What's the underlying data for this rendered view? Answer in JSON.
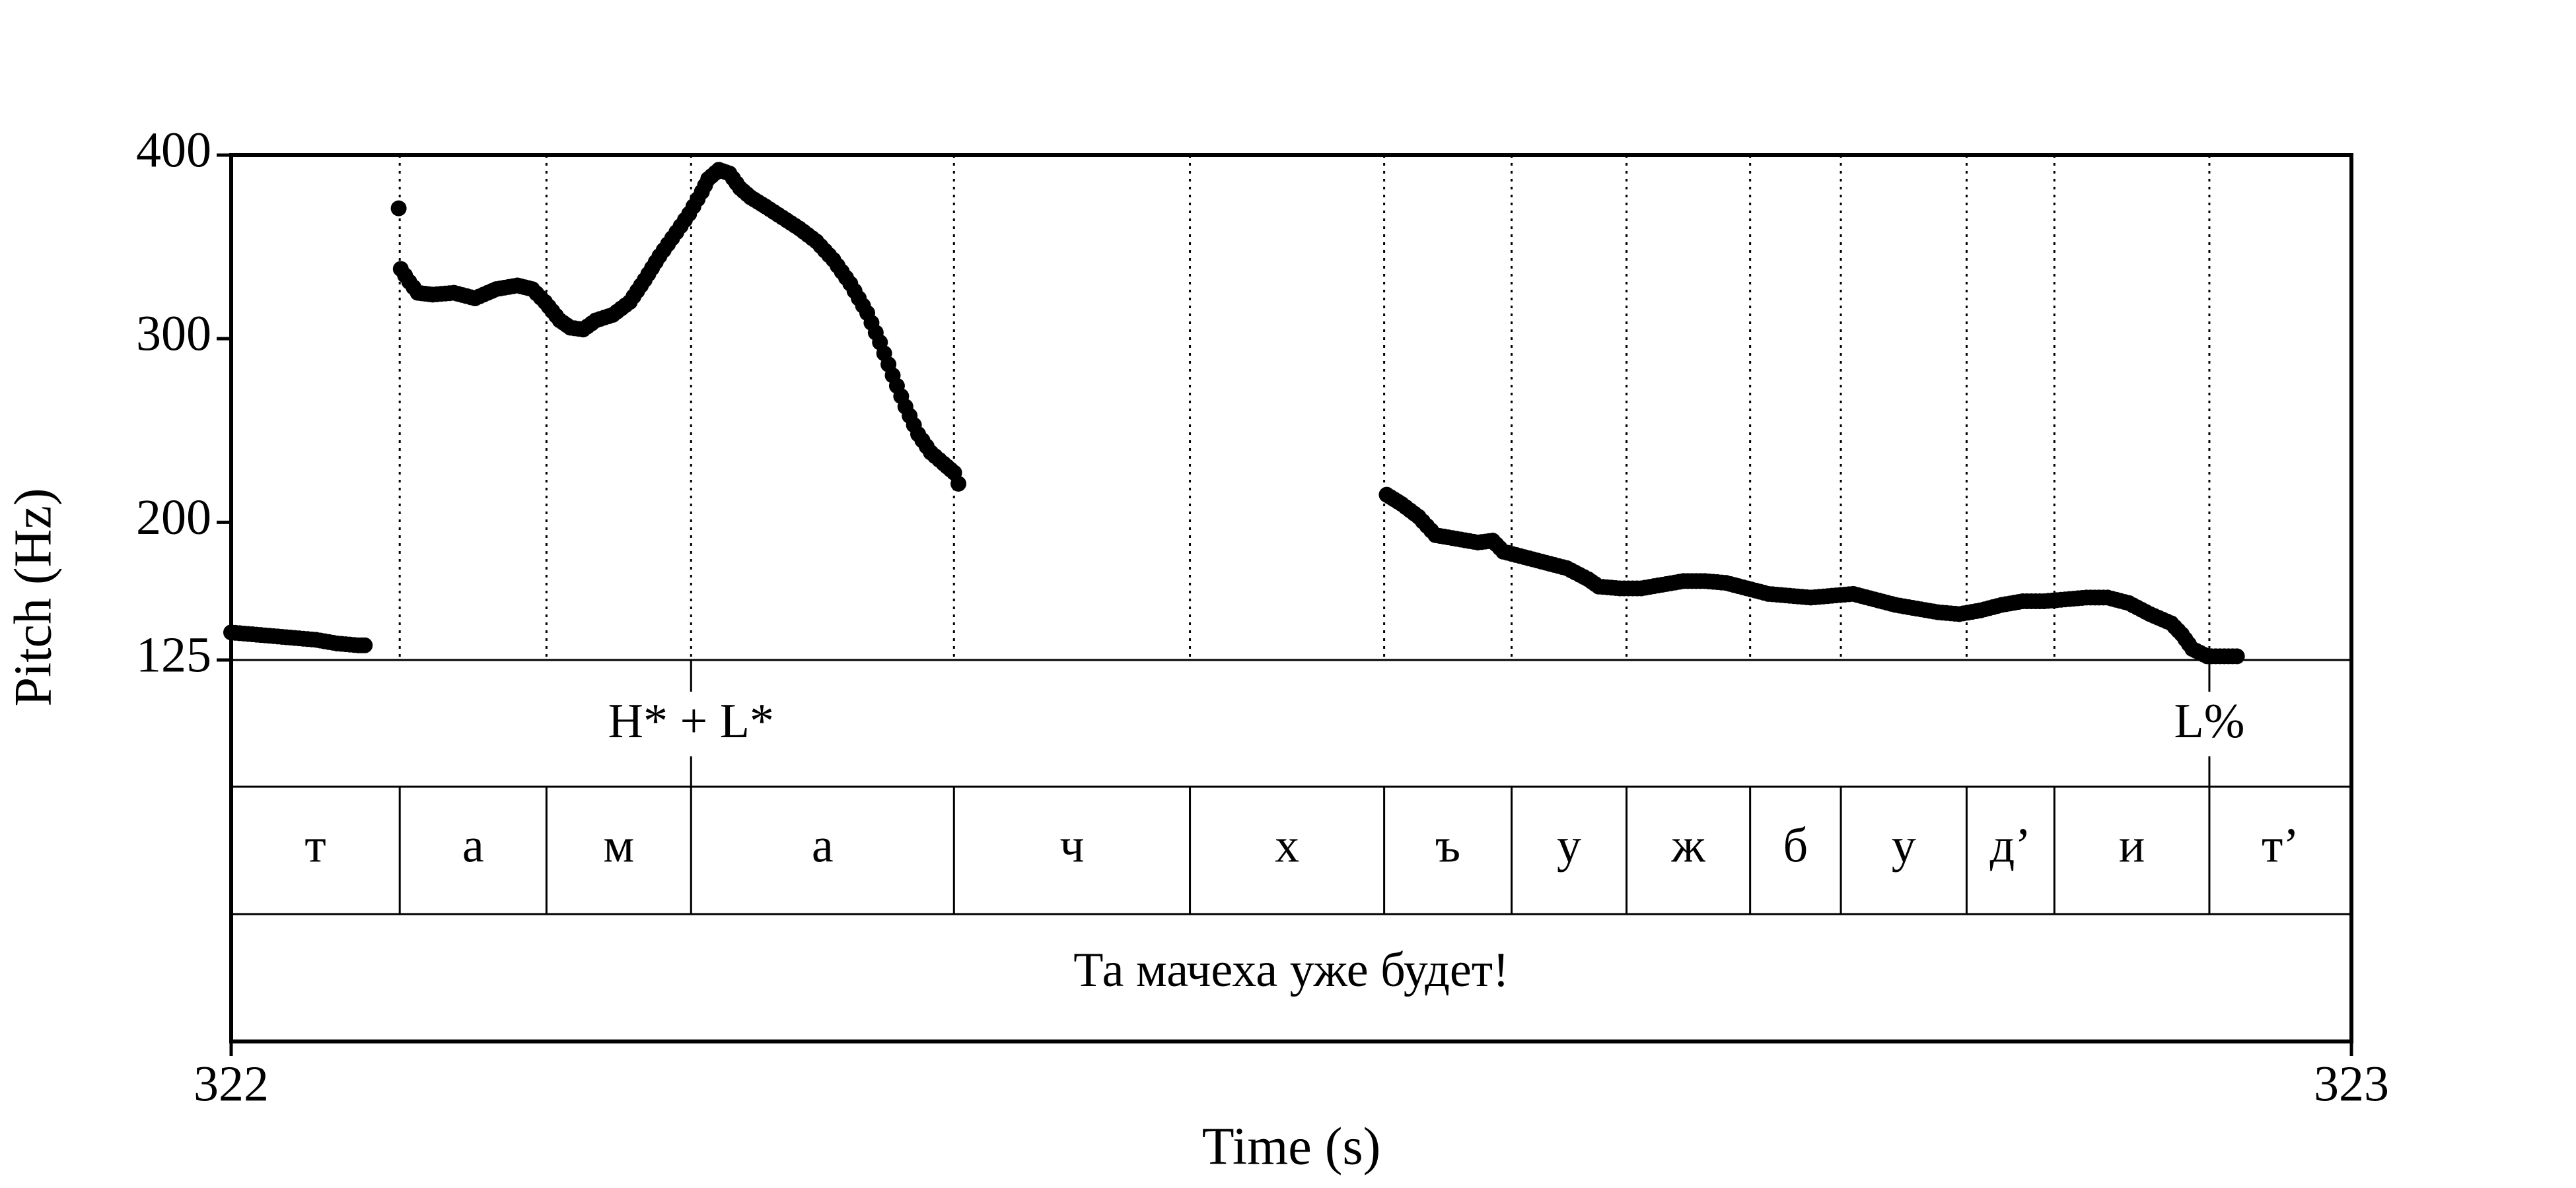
{
  "chart_data": {
    "type": "scatter",
    "xlabel": "Time (s)",
    "ylabel": "Pitch (Hz)",
    "xlim": [
      322,
      323
    ],
    "ylim": [
      125,
      400
    ],
    "x_ticks": [
      322,
      323
    ],
    "y_ticks": [
      125,
      200,
      300,
      400
    ],
    "grid": false,
    "boundaries": [
      322.0795,
      322.1487,
      322.2169,
      322.3409,
      322.4522,
      322.5438,
      322.6039,
      322.6581,
      322.7164,
      322.7592,
      322.8185,
      322.8599,
      322.933
    ],
    "tones": [
      {
        "label": "H* + L*",
        "time": 322.2169
      },
      {
        "label": "L%",
        "time": 322.933
      }
    ],
    "segments": [
      {
        "label": "т",
        "start": 322.0,
        "end": 322.0795
      },
      {
        "label": "а",
        "start": 322.0795,
        "end": 322.1487
      },
      {
        "label": "м",
        "start": 322.1487,
        "end": 322.2169
      },
      {
        "label": "а",
        "start": 322.2169,
        "end": 322.3409
      },
      {
        "label": "ч",
        "start": 322.3409,
        "end": 322.4522
      },
      {
        "label": "х",
        "start": 322.4522,
        "end": 322.5438
      },
      {
        "label": "ъ",
        "start": 322.5438,
        "end": 322.6039
      },
      {
        "label": "у",
        "start": 322.6039,
        "end": 322.6581
      },
      {
        "label": "ж",
        "start": 322.6581,
        "end": 322.7164
      },
      {
        "label": "б",
        "start": 322.7164,
        "end": 322.7592
      },
      {
        "label": "у",
        "start": 322.7592,
        "end": 322.8185
      },
      {
        "label": "д’",
        "start": 322.8185,
        "end": 322.8599
      },
      {
        "label": "и",
        "start": 322.8599,
        "end": 322.933
      },
      {
        "label": "т’",
        "start": 322.933,
        "end": 323.0
      }
    ],
    "sentence": "Та мачеха уже будет!",
    "pitch_contours": [
      {
        "points": [
          [
            322.0,
            140
          ],
          [
            322.01,
            139
          ],
          [
            322.02,
            138
          ],
          [
            322.03,
            137
          ],
          [
            322.04,
            136
          ],
          [
            322.05,
            134
          ],
          [
            322.06,
            133
          ],
          [
            322.063,
            133
          ]
        ]
      },
      {
        "points": [
          [
            322.079,
            371
          ]
        ]
      },
      {
        "points": [
          [
            322.08,
            338
          ],
          [
            322.084,
            331
          ],
          [
            322.088,
            325
          ],
          [
            322.095,
            324
          ],
          [
            322.105,
            325
          ],
          [
            322.115,
            322
          ],
          [
            322.125,
            327
          ],
          [
            322.135,
            329
          ],
          [
            322.142,
            327
          ],
          [
            322.148,
            320
          ],
          [
            322.155,
            310
          ],
          [
            322.16,
            306
          ],
          [
            322.166,
            305
          ],
          [
            322.172,
            310
          ],
          [
            322.18,
            313
          ],
          [
            322.188,
            320
          ],
          [
            322.195,
            332
          ],
          [
            322.202,
            345
          ],
          [
            322.21,
            358
          ],
          [
            322.216,
            368
          ],
          [
            322.222,
            380
          ],
          [
            322.225,
            387
          ],
          [
            322.23,
            392
          ],
          [
            322.235,
            390
          ],
          [
            322.24,
            382
          ],
          [
            322.245,
            377
          ],
          [
            322.252,
            372
          ],
          [
            322.26,
            366
          ],
          [
            322.268,
            360
          ],
          [
            322.276,
            353
          ],
          [
            322.284,
            343
          ],
          [
            322.292,
            330
          ],
          [
            322.3,
            314
          ],
          [
            322.306,
            298
          ],
          [
            322.312,
            280
          ],
          [
            322.318,
            263
          ],
          [
            322.324,
            248
          ],
          [
            322.33,
            238
          ],
          [
            322.336,
            232
          ],
          [
            322.341,
            227
          ],
          [
            322.343,
            221
          ]
        ]
      },
      {
        "points": [
          [
            322.545,
            215
          ],
          [
            322.552,
            210
          ],
          [
            322.56,
            203
          ],
          [
            322.568,
            193
          ],
          [
            322.578,
            191
          ],
          [
            322.588,
            189
          ],
          [
            322.595,
            190
          ],
          [
            322.6,
            184
          ],
          [
            322.61,
            181
          ],
          [
            322.62,
            178
          ],
          [
            322.63,
            175
          ],
          [
            322.64,
            169
          ],
          [
            322.645,
            165
          ],
          [
            322.655,
            164
          ],
          [
            322.665,
            164
          ],
          [
            322.675,
            166
          ],
          [
            322.685,
            168
          ],
          [
            322.695,
            168
          ],
          [
            322.705,
            167
          ],
          [
            322.715,
            164
          ],
          [
            322.725,
            161
          ],
          [
            322.735,
            160
          ],
          [
            322.745,
            159
          ],
          [
            322.755,
            160
          ],
          [
            322.765,
            161
          ],
          [
            322.775,
            158
          ],
          [
            322.785,
            155
          ],
          [
            322.795,
            153
          ],
          [
            322.805,
            151
          ],
          [
            322.815,
            150
          ],
          [
            322.825,
            152
          ],
          [
            322.835,
            155
          ],
          [
            322.845,
            157
          ],
          [
            322.855,
            157
          ],
          [
            322.865,
            158
          ],
          [
            322.875,
            159
          ],
          [
            322.885,
            159
          ],
          [
            322.895,
            156
          ],
          [
            322.905,
            150
          ],
          [
            322.915,
            145
          ],
          [
            322.92,
            139
          ],
          [
            322.925,
            131
          ],
          [
            322.932,
            127
          ],
          [
            322.94,
            127
          ],
          [
            322.946,
            127
          ]
        ]
      }
    ]
  }
}
